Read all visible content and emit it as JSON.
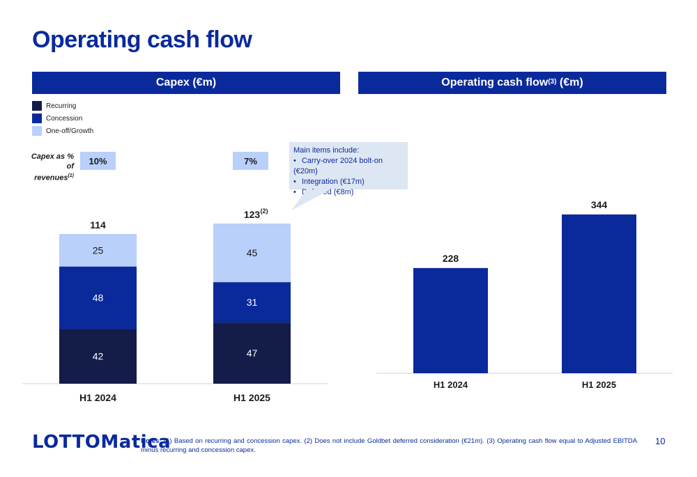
{
  "page": {
    "title": "Operating cash flow",
    "page_number": "10",
    "logo_text": "LOTTOMatica",
    "notes_label": "Notes:",
    "notes_text": " (1) Based on recurring and concession capex. (2) Does not include Goldbet deferred consideration (€21m). (3) Operating cash flow equal to Adjusted EBITDA minus recurring and concession capex."
  },
  "left_panel": {
    "header": "Capex (€m)",
    "capex_pct_label_line1": "Capex as %",
    "capex_pct_label_line2": "of revenues",
    "capex_pct_label_sup": "(1)",
    "capex_pct_values": [
      "10%",
      "7%"
    ],
    "callout": {
      "heading": "Main items include:",
      "items": [
        "Carry-over 2024 bolt-on (€20m)",
        "Integration (€17m)",
        "Deferred (€8m)"
      ]
    },
    "legend": [
      {
        "label": "Recurring",
        "color": "#141c4a"
      },
      {
        "label": "Concession",
        "color": "#0a2a9c"
      },
      {
        "label": "One-off/Growth",
        "color": "#b8d0fa"
      }
    ]
  },
  "right_panel": {
    "header_main": "Operating cash flow",
    "header_sup": "(3)",
    "header_suffix": " (€m)"
  },
  "chart_data": [
    {
      "type": "bar",
      "stacked": true,
      "title": "Capex (€m)",
      "categories": [
        "H1 2024",
        "H1 2025"
      ],
      "series": [
        {
          "name": "Recurring",
          "values": [
            42,
            47
          ],
          "color": "#141c4a"
        },
        {
          "name": "Concession",
          "values": [
            48,
            31
          ],
          "color": "#0a2a9c"
        },
        {
          "name": "One-off/Growth",
          "values": [
            25,
            45
          ],
          "color": "#b8d0fa"
        }
      ],
      "totals": [
        "114",
        "123"
      ],
      "total_footnotes": [
        "",
        "(2)"
      ],
      "ylim": [
        0,
        123
      ],
      "grid": false
    },
    {
      "type": "bar",
      "title": "Operating cash flow(3) (€m)",
      "categories": [
        "H1 2024",
        "H1 2025"
      ],
      "values": [
        228,
        344
      ],
      "color": "#0a2a9c",
      "ylim": [
        0,
        344
      ],
      "grid": false
    }
  ]
}
